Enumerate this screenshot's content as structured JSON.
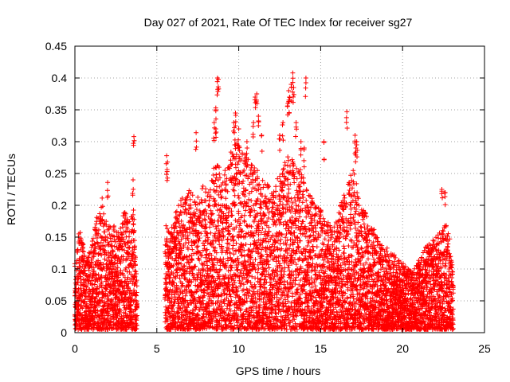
{
  "chart_data": {
    "type": "scatter",
    "title": "Day 027 of 2021, Rate Of TEC Index for receiver sg27",
    "xlabel": "GPS time / hours",
    "ylabel": "ROTI / TECUs",
    "xlim": [
      0,
      25
    ],
    "ylim": [
      0,
      0.45
    ],
    "xticks": [
      0,
      5,
      10,
      15,
      20,
      25
    ],
    "yticks": [
      0,
      0.05,
      0.1,
      0.15,
      0.2,
      0.25,
      0.3,
      0.35,
      0.4,
      0.45
    ],
    "xtick_labels": [
      "0",
      "5",
      "10",
      "15",
      "20",
      "25"
    ],
    "ytick_labels": [
      "0",
      "0.05",
      "0.1",
      "0.15",
      "0.2",
      "0.25",
      "0.3",
      "0.35",
      "0.4",
      "0.45"
    ],
    "grid": true,
    "marker": "plus",
    "color": "#ff0000",
    "envelope": [
      {
        "x": 0.0,
        "ymax": 0.12
      },
      {
        "x": 0.3,
        "ymax": 0.16
      },
      {
        "x": 0.7,
        "ymax": 0.11
      },
      {
        "x": 1.0,
        "ymax": 0.13
      },
      {
        "x": 1.3,
        "ymax": 0.18
      },
      {
        "x": 1.7,
        "ymax": 0.21
      },
      {
        "x": 2.0,
        "ymax": 0.16
      },
      {
        "x": 2.3,
        "ymax": 0.17
      },
      {
        "x": 2.7,
        "ymax": 0.15
      },
      {
        "x": 3.0,
        "ymax": 0.19
      },
      {
        "x": 3.3,
        "ymax": 0.17
      },
      {
        "x": 3.6,
        "ymax": 0.19
      },
      {
        "x": 3.8,
        "ymax": 0.06
      },
      {
        "x": 5.5,
        "ymax": 0.17
      },
      {
        "x": 5.8,
        "ymax": 0.15
      },
      {
        "x": 6.2,
        "ymax": 0.19
      },
      {
        "x": 6.6,
        "ymax": 0.21
      },
      {
        "x": 7.0,
        "ymax": 0.22
      },
      {
        "x": 7.4,
        "ymax": 0.2
      },
      {
        "x": 7.8,
        "ymax": 0.23
      },
      {
        "x": 8.2,
        "ymax": 0.22
      },
      {
        "x": 8.6,
        "ymax": 0.27
      },
      {
        "x": 9.0,
        "ymax": 0.24
      },
      {
        "x": 9.4,
        "ymax": 0.27
      },
      {
        "x": 9.8,
        "ymax": 0.3
      },
      {
        "x": 10.2,
        "ymax": 0.28
      },
      {
        "x": 10.6,
        "ymax": 0.27
      },
      {
        "x": 11.0,
        "ymax": 0.26
      },
      {
        "x": 11.4,
        "ymax": 0.24
      },
      {
        "x": 11.8,
        "ymax": 0.23
      },
      {
        "x": 12.2,
        "ymax": 0.23
      },
      {
        "x": 12.6,
        "ymax": 0.25
      },
      {
        "x": 13.0,
        "ymax": 0.28
      },
      {
        "x": 13.4,
        "ymax": 0.26
      },
      {
        "x": 13.8,
        "ymax": 0.25
      },
      {
        "x": 14.2,
        "ymax": 0.22
      },
      {
        "x": 14.6,
        "ymax": 0.2
      },
      {
        "x": 15.0,
        "ymax": 0.19
      },
      {
        "x": 15.4,
        "ymax": 0.17
      },
      {
        "x": 15.8,
        "ymax": 0.16
      },
      {
        "x": 16.2,
        "ymax": 0.2
      },
      {
        "x": 16.6,
        "ymax": 0.22
      },
      {
        "x": 17.0,
        "ymax": 0.26
      },
      {
        "x": 17.4,
        "ymax": 0.2
      },
      {
        "x": 17.8,
        "ymax": 0.18
      },
      {
        "x": 18.2,
        "ymax": 0.16
      },
      {
        "x": 18.6,
        "ymax": 0.14
      },
      {
        "x": 19.0,
        "ymax": 0.13
      },
      {
        "x": 19.4,
        "ymax": 0.12
      },
      {
        "x": 19.8,
        "ymax": 0.11
      },
      {
        "x": 20.2,
        "ymax": 0.1
      },
      {
        "x": 20.6,
        "ymax": 0.09
      },
      {
        "x": 21.0,
        "ymax": 0.11
      },
      {
        "x": 21.4,
        "ymax": 0.13
      },
      {
        "x": 21.8,
        "ymax": 0.14
      },
      {
        "x": 22.2,
        "ymax": 0.15
      },
      {
        "x": 22.6,
        "ymax": 0.17
      },
      {
        "x": 22.9,
        "ymax": 0.14
      },
      {
        "x": 23.1,
        "ymax": 0.08
      }
    ],
    "outliers": [
      {
        "x": 3.6,
        "y": 0.308
      },
      {
        "x": 3.55,
        "y": 0.24
      },
      {
        "x": 2.0,
        "y": 0.236
      },
      {
        "x": 5.6,
        "y": 0.278
      },
      {
        "x": 5.65,
        "y": 0.268
      },
      {
        "x": 7.4,
        "y": 0.314
      },
      {
        "x": 8.5,
        "y": 0.33
      },
      {
        "x": 8.6,
        "y": 0.353
      },
      {
        "x": 8.7,
        "y": 0.4
      },
      {
        "x": 8.75,
        "y": 0.398
      },
      {
        "x": 8.6,
        "y": 0.32
      },
      {
        "x": 9.7,
        "y": 0.33
      },
      {
        "x": 9.8,
        "y": 0.345
      },
      {
        "x": 10.0,
        "y": 0.32
      },
      {
        "x": 10.5,
        "y": 0.3
      },
      {
        "x": 10.9,
        "y": 0.33
      },
      {
        "x": 11.0,
        "y": 0.37
      },
      {
        "x": 11.1,
        "y": 0.375
      },
      {
        "x": 11.2,
        "y": 0.34
      },
      {
        "x": 11.4,
        "y": 0.31
      },
      {
        "x": 12.5,
        "y": 0.31
      },
      {
        "x": 12.7,
        "y": 0.33
      },
      {
        "x": 13.0,
        "y": 0.36
      },
      {
        "x": 13.05,
        "y": 0.38
      },
      {
        "x": 13.1,
        "y": 0.37
      },
      {
        "x": 13.2,
        "y": 0.39
      },
      {
        "x": 13.3,
        "y": 0.408
      },
      {
        "x": 13.35,
        "y": 0.385
      },
      {
        "x": 13.5,
        "y": 0.33
      },
      {
        "x": 13.8,
        "y": 0.3
      },
      {
        "x": 14.1,
        "y": 0.4
      },
      {
        "x": 14.0,
        "y": 0.29
      },
      {
        "x": 15.2,
        "y": 0.3
      },
      {
        "x": 16.6,
        "y": 0.347
      },
      {
        "x": 17.1,
        "y": 0.31
      },
      {
        "x": 17.2,
        "y": 0.3
      },
      {
        "x": 17.15,
        "y": 0.29
      },
      {
        "x": 22.4,
        "y": 0.225
      },
      {
        "x": 22.6,
        "y": 0.22
      }
    ]
  }
}
